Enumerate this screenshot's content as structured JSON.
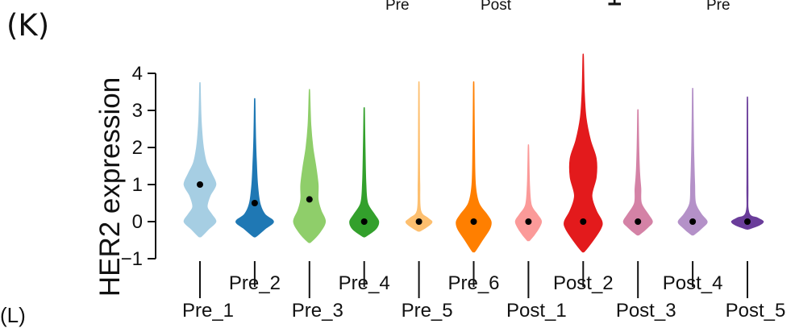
{
  "panel_label": "(K)",
  "corner_label": "(L)",
  "top_cutoff": {
    "left_1": "Pre",
    "left_2": "Post",
    "rotated": "HER",
    "right_1": "Pre"
  },
  "chart_data": {
    "type": "violin",
    "ylabel": "HER2 expression",
    "xlabel": "",
    "ylim": [
      -1,
      4.4
    ],
    "yticks": [
      -1,
      0,
      1,
      2,
      3,
      4
    ],
    "categories": [
      "Pre_1",
      "Pre_2",
      "Pre_3",
      "Pre_4",
      "Pre_5",
      "Pre_6",
      "Post_1",
      "Post_2",
      "Post_3",
      "Post_4",
      "Post_5"
    ],
    "series": [
      {
        "name": "Pre_1",
        "color": "#a6cee3",
        "median": 1.0,
        "min": -0.4,
        "max": 3.7,
        "width_profile": [
          [
            -0.4,
            0.05
          ],
          [
            -0.2,
            0.3
          ],
          [
            0.0,
            0.55
          ],
          [
            0.2,
            0.4
          ],
          [
            0.4,
            0.25
          ],
          [
            0.7,
            0.35
          ],
          [
            1.0,
            0.55
          ],
          [
            1.3,
            0.4
          ],
          [
            1.6,
            0.22
          ],
          [
            2.0,
            0.12
          ],
          [
            2.5,
            0.06
          ],
          [
            3.0,
            0.03
          ],
          [
            3.7,
            0.01
          ]
        ]
      },
      {
        "name": "Pre_2",
        "color": "#1f78b4",
        "median": 0.5,
        "min": -0.4,
        "max": 3.25,
        "width_profile": [
          [
            -0.4,
            0.05
          ],
          [
            -0.2,
            0.35
          ],
          [
            0.0,
            0.65
          ],
          [
            0.2,
            0.35
          ],
          [
            0.5,
            0.18
          ],
          [
            1.0,
            0.1
          ],
          [
            1.6,
            0.06
          ],
          [
            2.3,
            0.03
          ],
          [
            3.25,
            0.01
          ]
        ]
      },
      {
        "name": "Pre_3",
        "color": "#8fce6a",
        "median": 0.6,
        "min": -0.55,
        "max": 3.5,
        "width_profile": [
          [
            -0.55,
            0.05
          ],
          [
            -0.3,
            0.35
          ],
          [
            0.0,
            0.55
          ],
          [
            0.3,
            0.4
          ],
          [
            0.6,
            0.3
          ],
          [
            1.0,
            0.3
          ],
          [
            1.5,
            0.22
          ],
          [
            2.0,
            0.12
          ],
          [
            2.6,
            0.05
          ],
          [
            3.5,
            0.01
          ]
        ]
      },
      {
        "name": "Pre_4",
        "color": "#33a02c",
        "median": 0.0,
        "min": -0.4,
        "max": 3.0,
        "width_profile": [
          [
            -0.4,
            0.05
          ],
          [
            -0.2,
            0.4
          ],
          [
            0.0,
            0.5
          ],
          [
            0.2,
            0.35
          ],
          [
            0.5,
            0.12
          ],
          [
            1.0,
            0.06
          ],
          [
            2.0,
            0.03
          ],
          [
            3.0,
            0.01
          ]
        ]
      },
      {
        "name": "Pre_5",
        "color": "#fdbf6f",
        "median": 0.0,
        "min": -0.25,
        "max": 3.65,
        "width_profile": [
          [
            -0.25,
            0.05
          ],
          [
            -0.1,
            0.35
          ],
          [
            0.0,
            0.45
          ],
          [
            0.1,
            0.3
          ],
          [
            0.3,
            0.06
          ],
          [
            1.0,
            0.03
          ],
          [
            2.0,
            0.02
          ],
          [
            3.65,
            0.01
          ]
        ]
      },
      {
        "name": "Pre_6",
        "color": "#ff7f00",
        "median": 0.0,
        "min": -0.8,
        "max": 3.65,
        "width_profile": [
          [
            -0.8,
            0.05
          ],
          [
            -0.5,
            0.3
          ],
          [
            -0.2,
            0.55
          ],
          [
            0.0,
            0.6
          ],
          [
            0.2,
            0.45
          ],
          [
            0.5,
            0.18
          ],
          [
            1.0,
            0.06
          ],
          [
            2.0,
            0.03
          ],
          [
            3.65,
            0.01
          ]
        ]
      },
      {
        "name": "Post_1",
        "color": "#fb9a99",
        "median": 0.0,
        "min": -0.5,
        "max": 2.0,
        "width_profile": [
          [
            -0.5,
            0.05
          ],
          [
            -0.25,
            0.3
          ],
          [
            0.0,
            0.45
          ],
          [
            0.2,
            0.3
          ],
          [
            0.45,
            0.1
          ],
          [
            1.0,
            0.04
          ],
          [
            2.0,
            0.01
          ]
        ]
      },
      {
        "name": "Post_2",
        "color": "#e31a1c",
        "median": 0.0,
        "min": -0.8,
        "max": 4.45,
        "width_profile": [
          [
            -0.8,
            0.05
          ],
          [
            -0.5,
            0.35
          ],
          [
            -0.2,
            0.6
          ],
          [
            0.0,
            0.65
          ],
          [
            0.3,
            0.45
          ],
          [
            0.7,
            0.3
          ],
          [
            1.2,
            0.45
          ],
          [
            1.7,
            0.45
          ],
          [
            2.2,
            0.25
          ],
          [
            2.8,
            0.1
          ],
          [
            3.5,
            0.04
          ],
          [
            4.45,
            0.01
          ]
        ]
      },
      {
        "name": "Post_3",
        "color": "#d482a6",
        "median": 0.0,
        "min": -0.35,
        "max": 2.95,
        "width_profile": [
          [
            -0.35,
            0.05
          ],
          [
            -0.15,
            0.35
          ],
          [
            0.0,
            0.5
          ],
          [
            0.2,
            0.35
          ],
          [
            0.5,
            0.12
          ],
          [
            0.9,
            0.1
          ],
          [
            1.3,
            0.06
          ],
          [
            2.0,
            0.03
          ],
          [
            2.95,
            0.01
          ]
        ]
      },
      {
        "name": "Post_4",
        "color": "#b491c8",
        "median": 0.0,
        "min": -0.35,
        "max": 3.5,
        "width_profile": [
          [
            -0.35,
            0.05
          ],
          [
            -0.15,
            0.35
          ],
          [
            0.0,
            0.5
          ],
          [
            0.2,
            0.3
          ],
          [
            0.5,
            0.1
          ],
          [
            1.0,
            0.07
          ],
          [
            1.5,
            0.05
          ],
          [
            2.2,
            0.03
          ],
          [
            3.5,
            0.01
          ]
        ]
      },
      {
        "name": "Post_5",
        "color": "#6a3d9a",
        "median": 0.0,
        "min": -0.2,
        "max": 3.2,
        "width_profile": [
          [
            -0.2,
            0.05
          ],
          [
            -0.1,
            0.4
          ],
          [
            0.0,
            0.55
          ],
          [
            0.1,
            0.35
          ],
          [
            0.25,
            0.05
          ],
          [
            1.0,
            0.02
          ],
          [
            3.2,
            0.01
          ]
        ]
      }
    ]
  }
}
